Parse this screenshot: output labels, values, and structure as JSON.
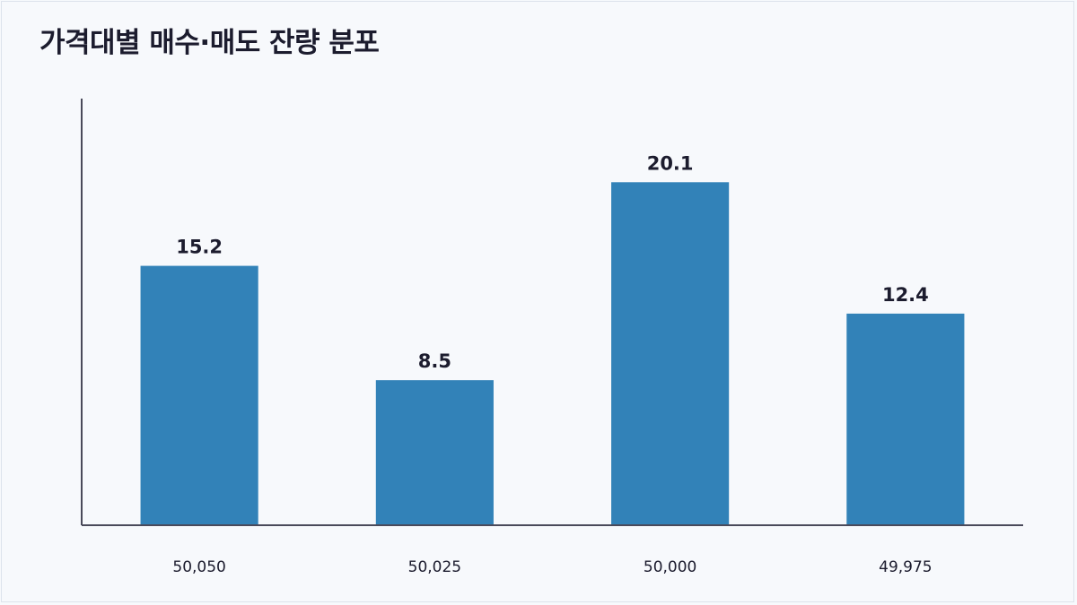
{
  "chart_data": {
    "type": "bar",
    "title": "가격대별 매수·매도 잔량 분포",
    "categories": [
      "50,050",
      "50,025",
      "50,000",
      "49,975"
    ],
    "values": [
      15.2,
      8.5,
      20.1,
      12.4
    ],
    "data_labels": [
      "15.2",
      "8.5",
      "20.1",
      "12.4"
    ],
    "xlabel": "",
    "ylabel": "",
    "ylim": [
      0,
      25
    ],
    "grid": false,
    "bar_color": "#3282b8",
    "axis_color": "#4a4a5a"
  }
}
